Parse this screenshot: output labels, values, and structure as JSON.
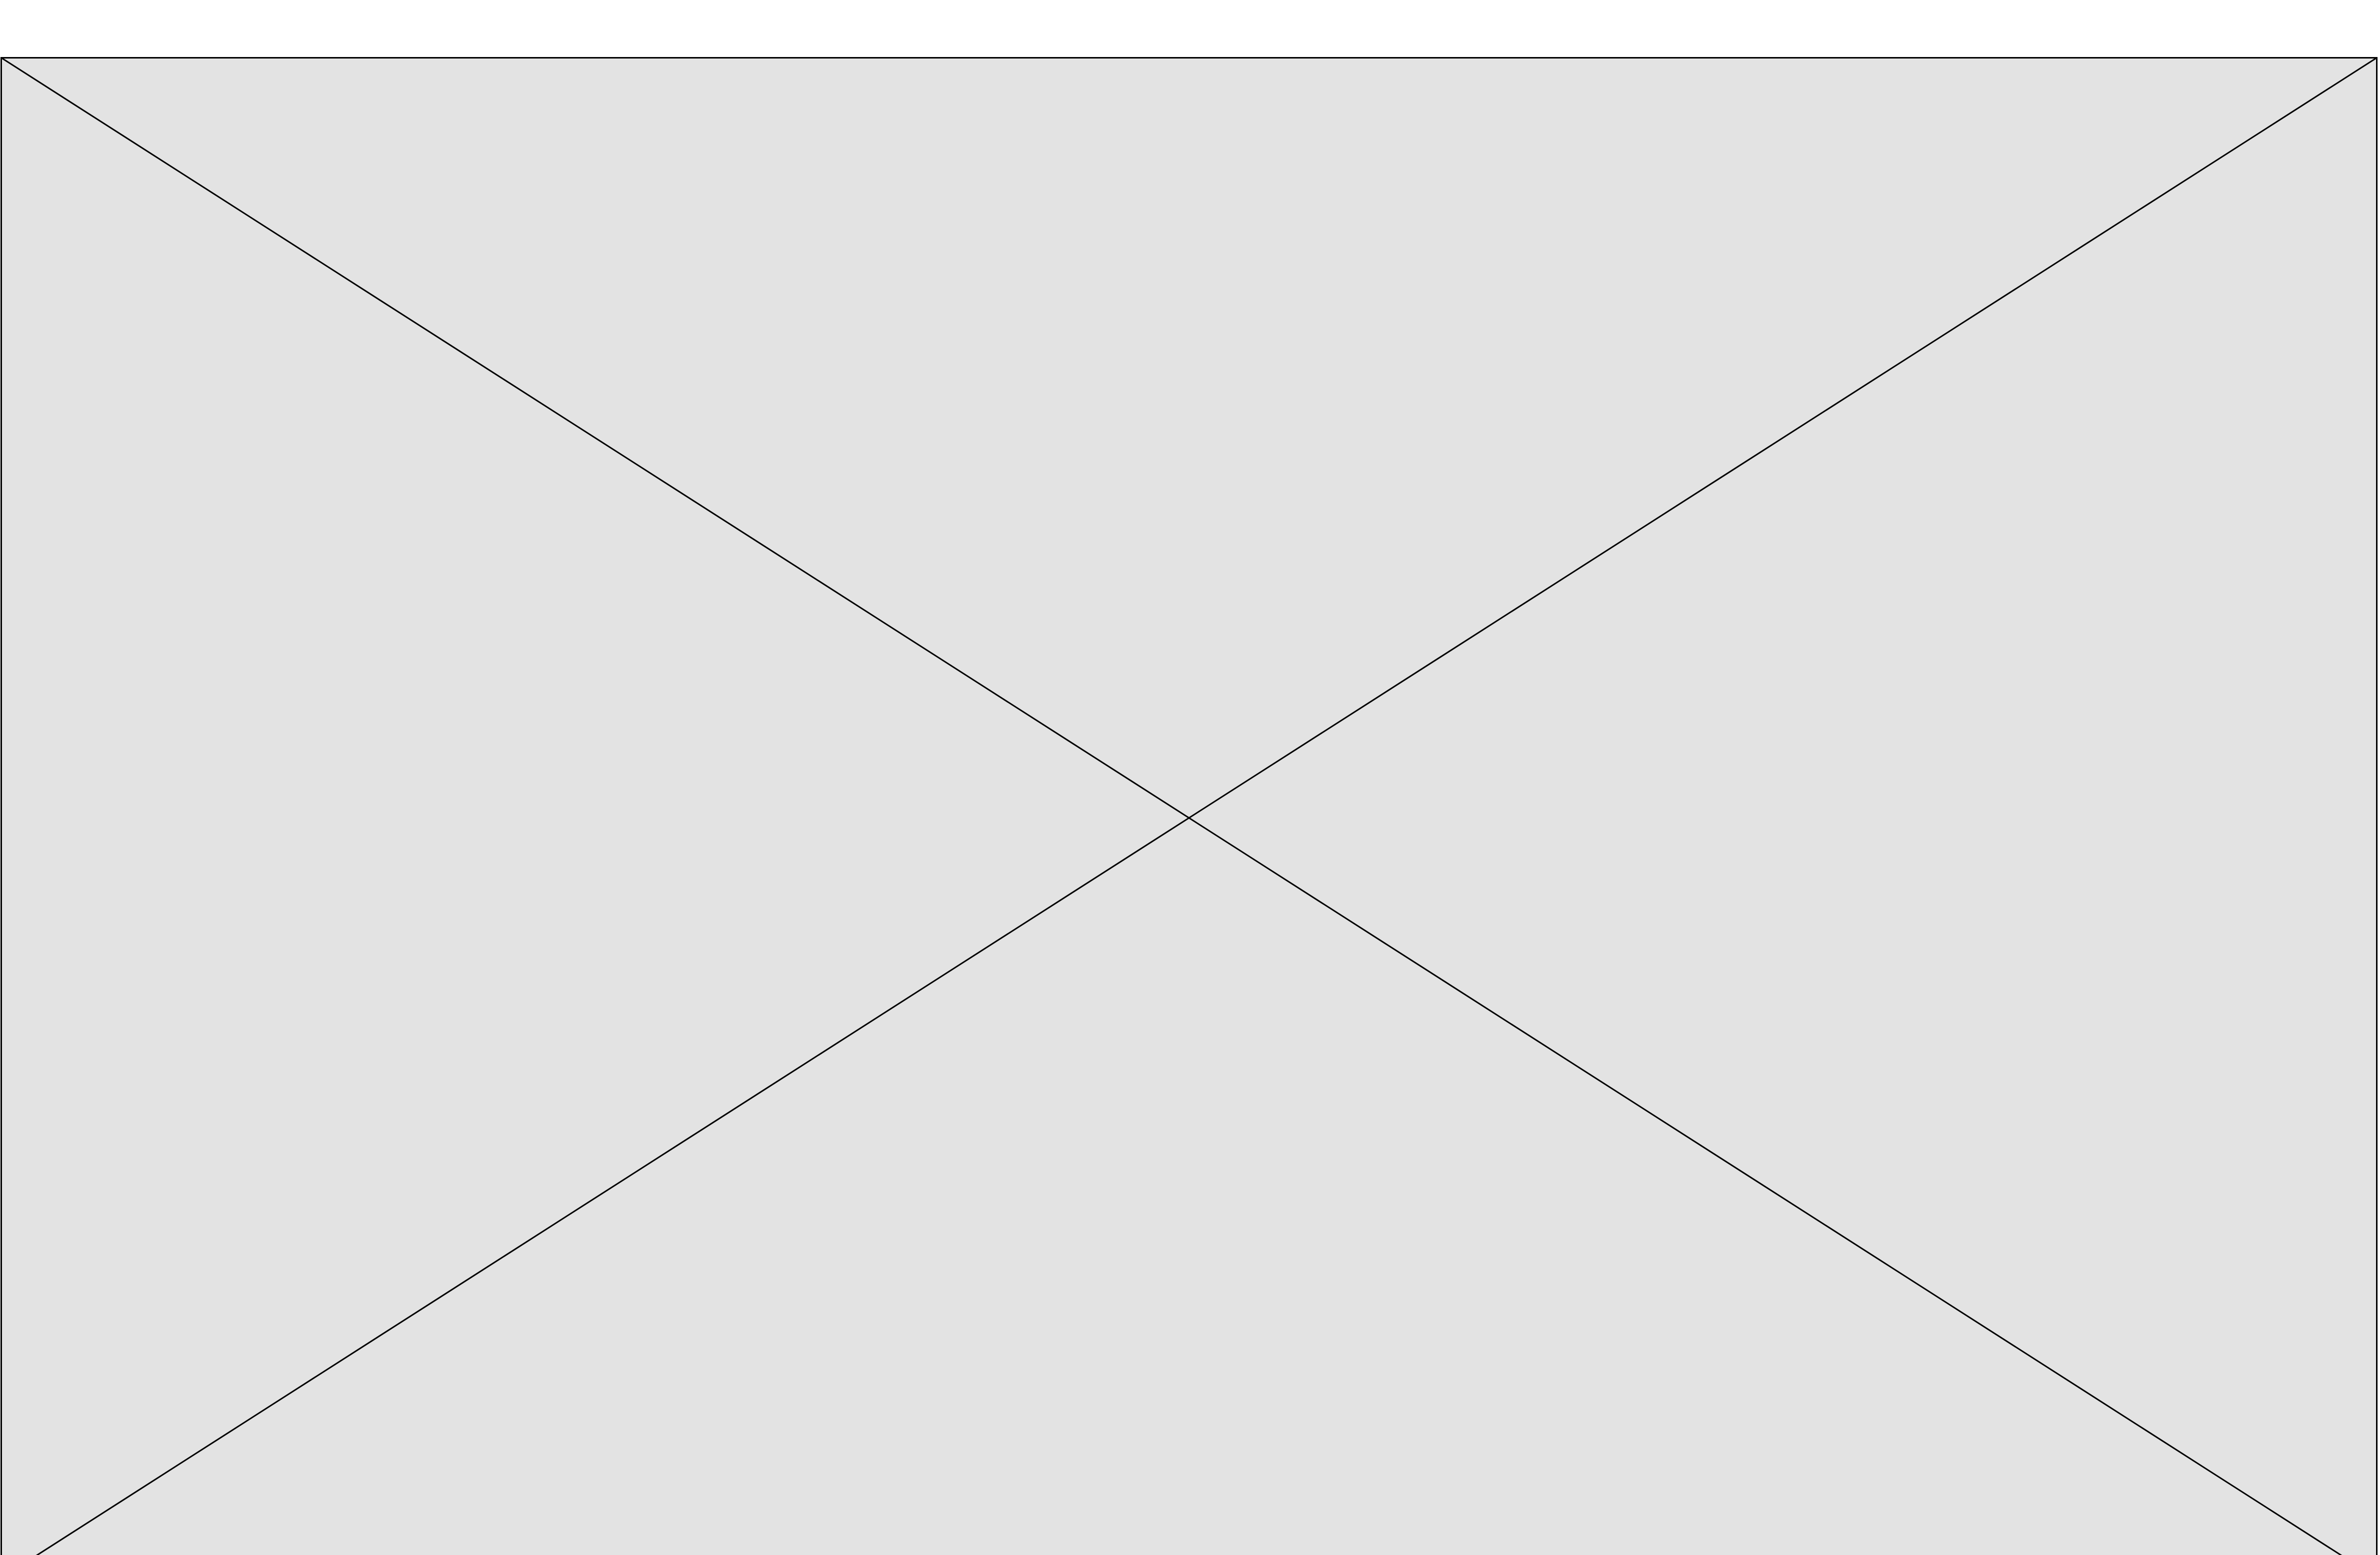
{
  "placeholder": {
    "icon": "broken-image-placeholder-icon",
    "fill_color": "#e3e3e3",
    "stroke_color": "#000000",
    "background_color": "#ffffff"
  }
}
